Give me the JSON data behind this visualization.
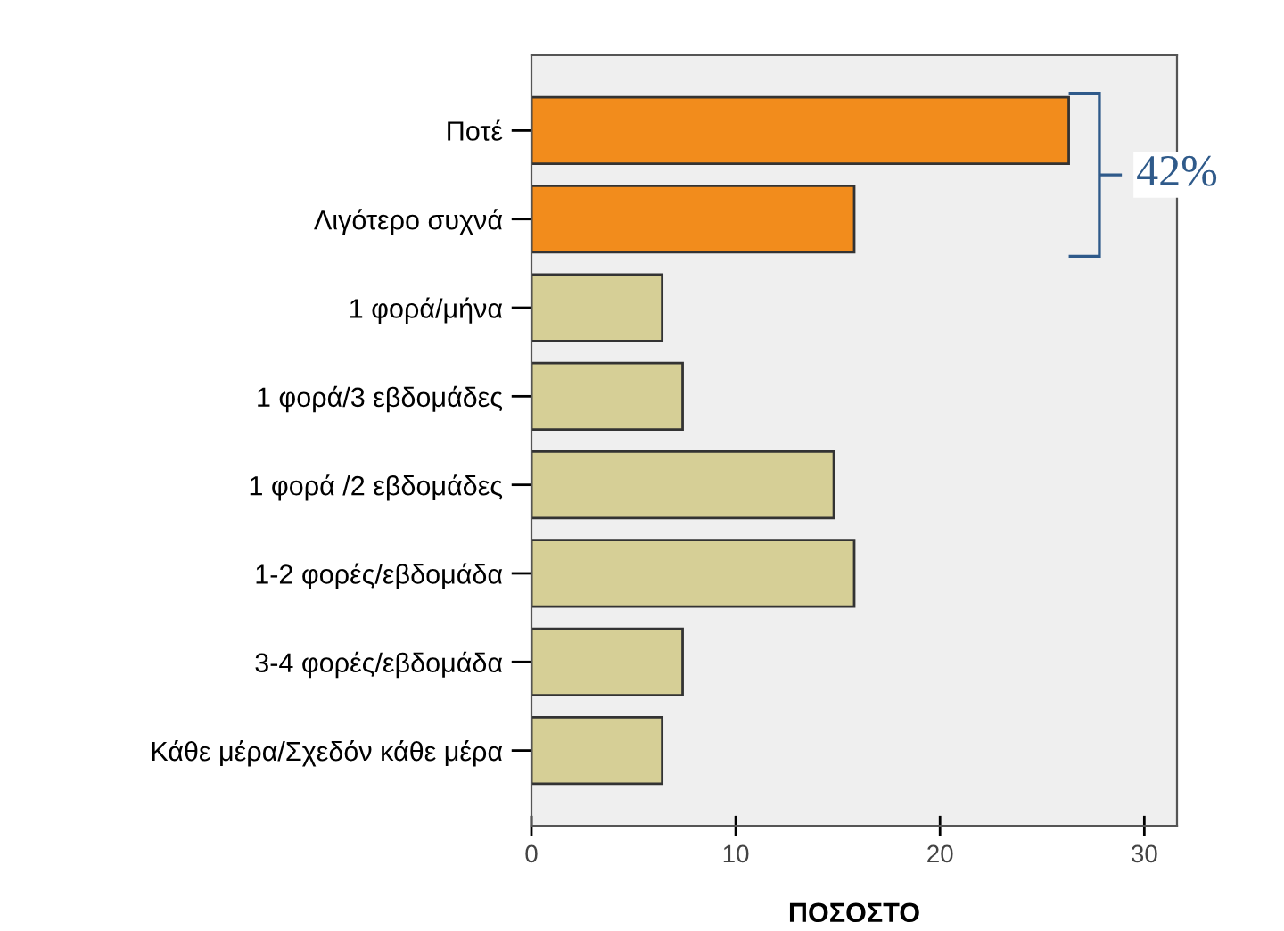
{
  "chart_data": {
    "type": "bar",
    "orientation": "horizontal",
    "xlabel": "ΠΟΣΟΣΤΟ",
    "categories": [
      "Ποτέ",
      "Λιγότερο συχνά",
      "1 φορά/μήνα",
      "1 φορά/3 εβδομάδες",
      "1 φορά /2 εβδομάδες",
      "1-2 φορές/εβδομάδα",
      "3-4 φορές/εβδομάδα",
      "Κάθε μέρα/Σχεδόν κάθε μέρα"
    ],
    "values": [
      26.3,
      15.8,
      6.4,
      7.4,
      14.8,
      15.8,
      7.4,
      6.4
    ],
    "colors": [
      "#f28c1c",
      "#f28c1c",
      "#d6cf96",
      "#d6cf96",
      "#d6cf96",
      "#d6cf96",
      "#d6cf96",
      "#d6cf96"
    ],
    "xlim": [
      0,
      31.6
    ],
    "xticks": [
      0,
      10,
      20,
      30
    ],
    "grid": false,
    "annotations": [
      {
        "text": "42%",
        "x": 26.3,
        "y": "Ποτέ"
      }
    ]
  }
}
